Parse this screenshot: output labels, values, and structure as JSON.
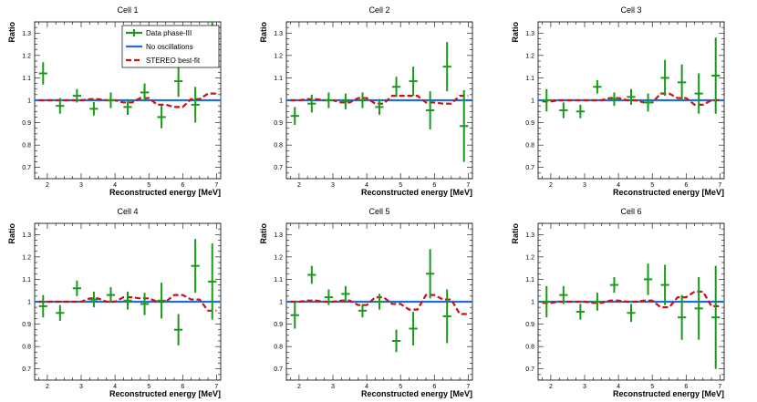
{
  "chart_data": {
    "type": "scatter",
    "xlabel": "Reconstructed energy [MeV]",
    "ylabel": "Ratio",
    "xlim": [
      1.625,
      7.125
    ],
    "ylim": [
      0.65,
      1.35
    ],
    "x_ticks": [
      2,
      3,
      4,
      5,
      6,
      7
    ],
    "y_ticks": [
      0.7,
      0.8,
      0.9,
      1,
      1.1,
      1.2,
      1.3
    ],
    "x_bins": [
      1.875,
      2.375,
      2.875,
      3.375,
      3.875,
      4.375,
      4.875,
      5.375,
      5.875,
      6.375,
      6.875
    ],
    "bin_halfwidth": 0.125,
    "colors": {
      "data": "#1a9a1a",
      "no_osc": "#1f6fd4",
      "bestfit": "#cc1111"
    },
    "legend": {
      "data_label": "Data phase-III",
      "no_osc_label": "No oscillations",
      "bestfit_label": "STEREO best-fit",
      "placement": "top-center of first panel"
    },
    "cells": [
      {
        "title": "Cell 1",
        "data": [
          1.12,
          0.975,
          1.02,
          0.962,
          1.0,
          0.97,
          1.035,
          0.925,
          1.085,
          0.98,
          1.29
        ],
        "err": [
          0.05,
          0.035,
          0.03,
          0.03,
          0.035,
          0.035,
          0.04,
          0.05,
          0.07,
          0.08,
          0.08
        ],
        "bestfit": [
          1.0,
          1.0,
          1.0,
          1.005,
          1.0,
          0.99,
          1.01,
          0.98,
          0.97,
          1.005,
          1.03
        ]
      },
      {
        "title": "Cell 2",
        "data": [
          0.93,
          0.985,
          1.0,
          0.995,
          1.0,
          0.97,
          1.06,
          1.085,
          0.955,
          1.15,
          0.885
        ],
        "err": [
          0.04,
          0.04,
          0.035,
          0.035,
          0.035,
          0.035,
          0.045,
          0.065,
          0.085,
          0.11,
          0.16
        ],
        "bestfit": [
          1.0,
          1.005,
          1.0,
          0.99,
          1.01,
          0.985,
          1.02,
          1.02,
          0.99,
          0.985,
          1.02
        ]
      },
      {
        "title": "Cell 3",
        "data": [
          1.0,
          0.955,
          0.95,
          1.06,
          1.005,
          1.015,
          0.99,
          1.1,
          1.08,
          1.03,
          1.11
        ],
        "err": [
          0.05,
          0.035,
          0.03,
          0.03,
          0.03,
          0.035,
          0.04,
          0.08,
          0.08,
          0.09,
          0.17
        ],
        "bestfit": [
          0.995,
          1.0,
          1.0,
          1.0,
          1.01,
          1.0,
          0.99,
          1.03,
          1.01,
          0.98,
          1.0
        ]
      },
      {
        "title": "Cell 4",
        "data": [
          0.98,
          0.95,
          1.06,
          1.01,
          1.03,
          1.005,
          0.99,
          1.005,
          0.875,
          1.16,
          1.09
        ],
        "err": [
          0.05,
          0.035,
          0.035,
          0.035,
          0.035,
          0.04,
          0.05,
          0.08,
          0.07,
          0.12,
          0.17
        ],
        "bestfit": [
          1.0,
          1.0,
          1.0,
          1.015,
          1.0,
          1.02,
          1.015,
          1.0,
          1.03,
          1.01,
          0.96
        ]
      },
      {
        "title": "Cell 5",
        "data": [
          0.94,
          1.12,
          1.02,
          1.035,
          0.96,
          1.0,
          0.825,
          0.88,
          1.125,
          0.935,
          null
        ],
        "err": [
          0.06,
          0.04,
          0.035,
          0.035,
          0.03,
          0.035,
          0.05,
          0.075,
          0.11,
          0.12,
          0.0
        ],
        "bestfit": [
          1.0,
          1.005,
          1.0,
          1.005,
          0.985,
          1.02,
          0.99,
          0.965,
          1.03,
          1.01,
          0.945
        ]
      },
      {
        "title": "Cell 6",
        "data": [
          1.0,
          1.03,
          0.955,
          1.0,
          1.075,
          0.95,
          1.1,
          1.075,
          0.93,
          0.97,
          0.93
        ],
        "err": [
          0.07,
          0.04,
          0.035,
          0.04,
          0.035,
          0.04,
          0.07,
          0.09,
          0.1,
          0.14,
          0.23
        ],
        "bestfit": [
          0.995,
          1.0,
          1.0,
          0.995,
          1.005,
          1.0,
          1.005,
          0.975,
          1.02,
          1.045,
          0.98
        ]
      }
    ]
  }
}
